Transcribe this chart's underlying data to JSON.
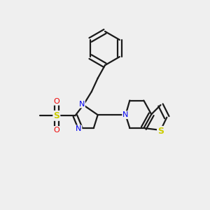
{
  "bg_color": "#efefef",
  "bond_color": "#1a1a1a",
  "N_color": "#0000ee",
  "S_color": "#cccc00",
  "O_color": "#ee0000",
  "line_width": 1.6,
  "figsize": [
    3.0,
    3.0
  ],
  "dpi": 100,
  "xlim": [
    0.0,
    1.0
  ],
  "ylim": [
    0.15,
    1.05
  ]
}
